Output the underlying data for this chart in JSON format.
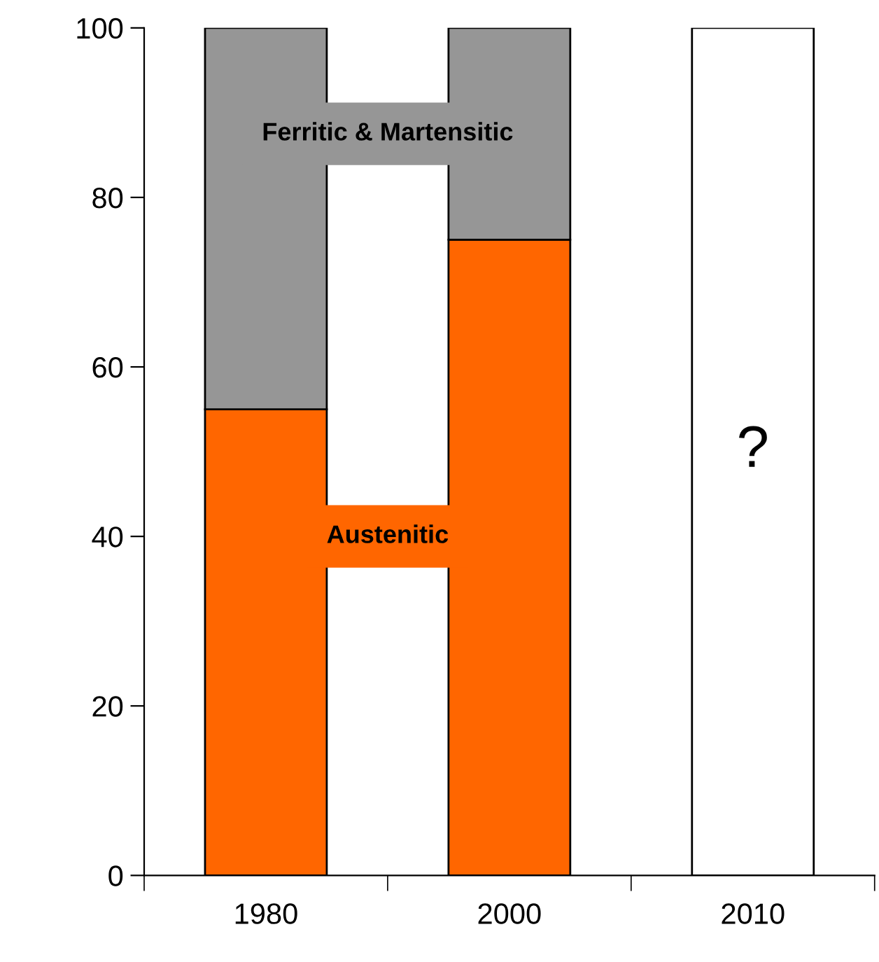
{
  "chart_data": {
    "type": "bar",
    "stacked": true,
    "categories": [
      "1980",
      "2000",
      "2010"
    ],
    "series": [
      {
        "name": "Austenitic",
        "color": "#ff6600",
        "values": [
          55,
          75,
          null
        ]
      },
      {
        "name": "Ferritic & Martensitic",
        "color": "#969696",
        "values": [
          45,
          25,
          null
        ]
      },
      {
        "color": "#ffffff",
        "values": [
          null,
          null,
          100
        ]
      }
    ],
    "annotations": [
      "?"
    ],
    "ylim": [
      0,
      100
    ],
    "yticks": [
      0,
      20,
      40,
      60,
      80,
      100
    ],
    "grid": false,
    "legend": false
  }
}
